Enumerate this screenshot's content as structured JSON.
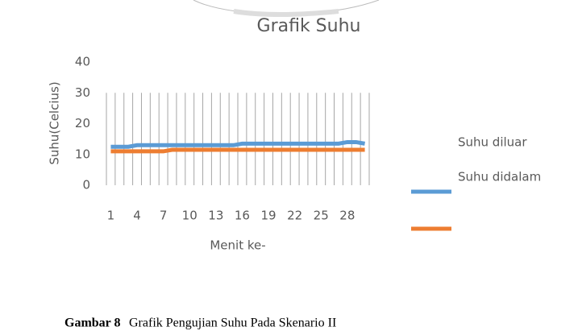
{
  "chart_data": {
    "type": "line",
    "title": "Grafik Suhu",
    "y_label": "Suhu(Celcius)",
    "x_label": "Menit ke-",
    "categories": [
      1,
      null,
      null,
      4,
      null,
      null,
      7,
      null,
      null,
      10,
      null,
      null,
      13,
      null,
      null,
      16,
      null,
      null,
      19,
      null,
      null,
      22,
      null,
      null,
      25,
      null,
      null,
      28,
      null,
      null
    ],
    "series": [
      {
        "name": "Suhu diluar",
        "color": "#5b9bd5",
        "values": [
          12.5,
          12.5,
          12.5,
          13,
          13,
          13,
          13,
          13,
          13,
          13,
          13,
          13,
          13,
          13,
          13,
          13.5,
          13.5,
          13.5,
          13.5,
          13.5,
          13.5,
          13.5,
          13.5,
          13.5,
          13.5,
          13.5,
          13.5,
          14,
          14,
          13.5
        ]
      },
      {
        "name": "Suhu didalam",
        "color": "#ed7d31",
        "values": [
          11,
          11,
          11,
          11,
          11,
          11,
          11,
          11.5,
          11.5,
          11.5,
          11.5,
          11.5,
          11.5,
          11.5,
          11.5,
          11.5,
          11.5,
          11.5,
          11.5,
          11.5,
          11.5,
          11.5,
          11.5,
          11.5,
          11.5,
          11.5,
          11.5,
          11.5,
          11.5,
          11.5
        ]
      }
    ],
    "ylim": [
      0,
      40
    ],
    "yticks": [
      0,
      10,
      20,
      30,
      40
    ],
    "grid": true
  },
  "figure_label": "Gambar 8",
  "caption": "Grafik Pengujian Suhu Pada Skenario II"
}
